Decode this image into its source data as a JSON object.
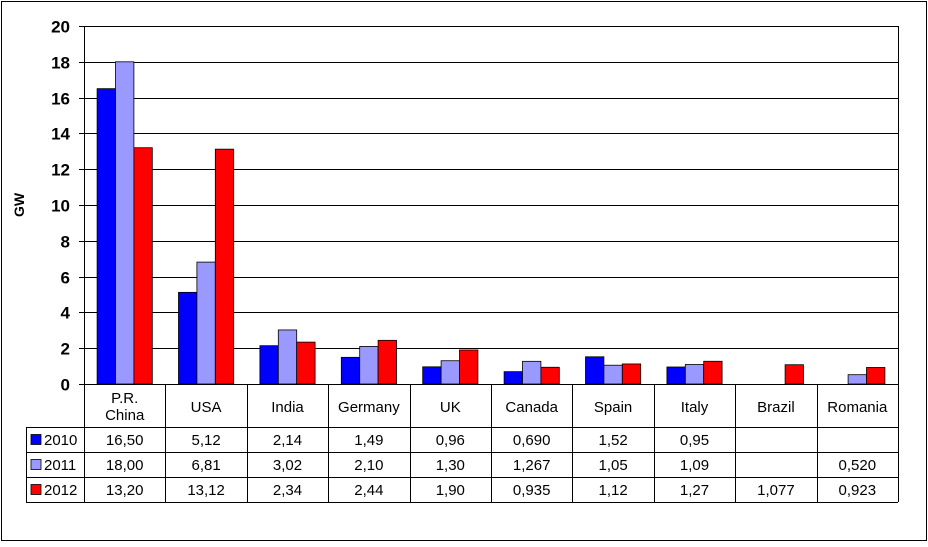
{
  "chart_data": {
    "type": "bar",
    "ylabel": "GW",
    "ylim": [
      0,
      20
    ],
    "yticks": [
      0,
      2,
      4,
      6,
      8,
      10,
      12,
      14,
      16,
      18,
      20
    ],
    "grid": true,
    "categories": [
      "P.R. China",
      "USA",
      "India",
      "Germany",
      "UK",
      "Canada",
      "Spain",
      "Italy",
      "Brazil",
      "Romania"
    ],
    "category_lines": [
      [
        "P.R.",
        "China"
      ],
      [
        "USA"
      ],
      [
        "India"
      ],
      [
        "Germany"
      ],
      [
        "UK"
      ],
      [
        "Canada"
      ],
      [
        "Spain"
      ],
      [
        "Italy"
      ],
      [
        "Brazil"
      ],
      [
        "Romania"
      ]
    ],
    "series": [
      {
        "name": "2010",
        "color": "#0000FF",
        "values": [
          16.5,
          5.12,
          2.14,
          1.49,
          0.96,
          0.69,
          1.52,
          0.95,
          null,
          null
        ],
        "labels": [
          "16,50",
          "5,12",
          "2,14",
          "1,49",
          "0,96",
          "0,690",
          "1,52",
          "0,95",
          "",
          ""
        ]
      },
      {
        "name": "2011",
        "color": "#9999FF",
        "values": [
          18.0,
          6.81,
          3.02,
          2.1,
          1.3,
          1.267,
          1.05,
          1.09,
          null,
          0.52
        ],
        "labels": [
          "18,00",
          "6,81",
          "3,02",
          "2,10",
          "1,30",
          "1,267",
          "1,05",
          "1,09",
          "",
          "0,520"
        ]
      },
      {
        "name": "2012",
        "color": "#FF0000",
        "values": [
          13.2,
          13.12,
          2.34,
          2.44,
          1.9,
          0.935,
          1.12,
          1.27,
          1.077,
          0.923
        ],
        "labels": [
          "13,20",
          "13,12",
          "2,34",
          "2,44",
          "1,90",
          "0,935",
          "1,12",
          "1,27",
          "1,077",
          "0,923"
        ]
      }
    ],
    "legend": "data-table"
  }
}
